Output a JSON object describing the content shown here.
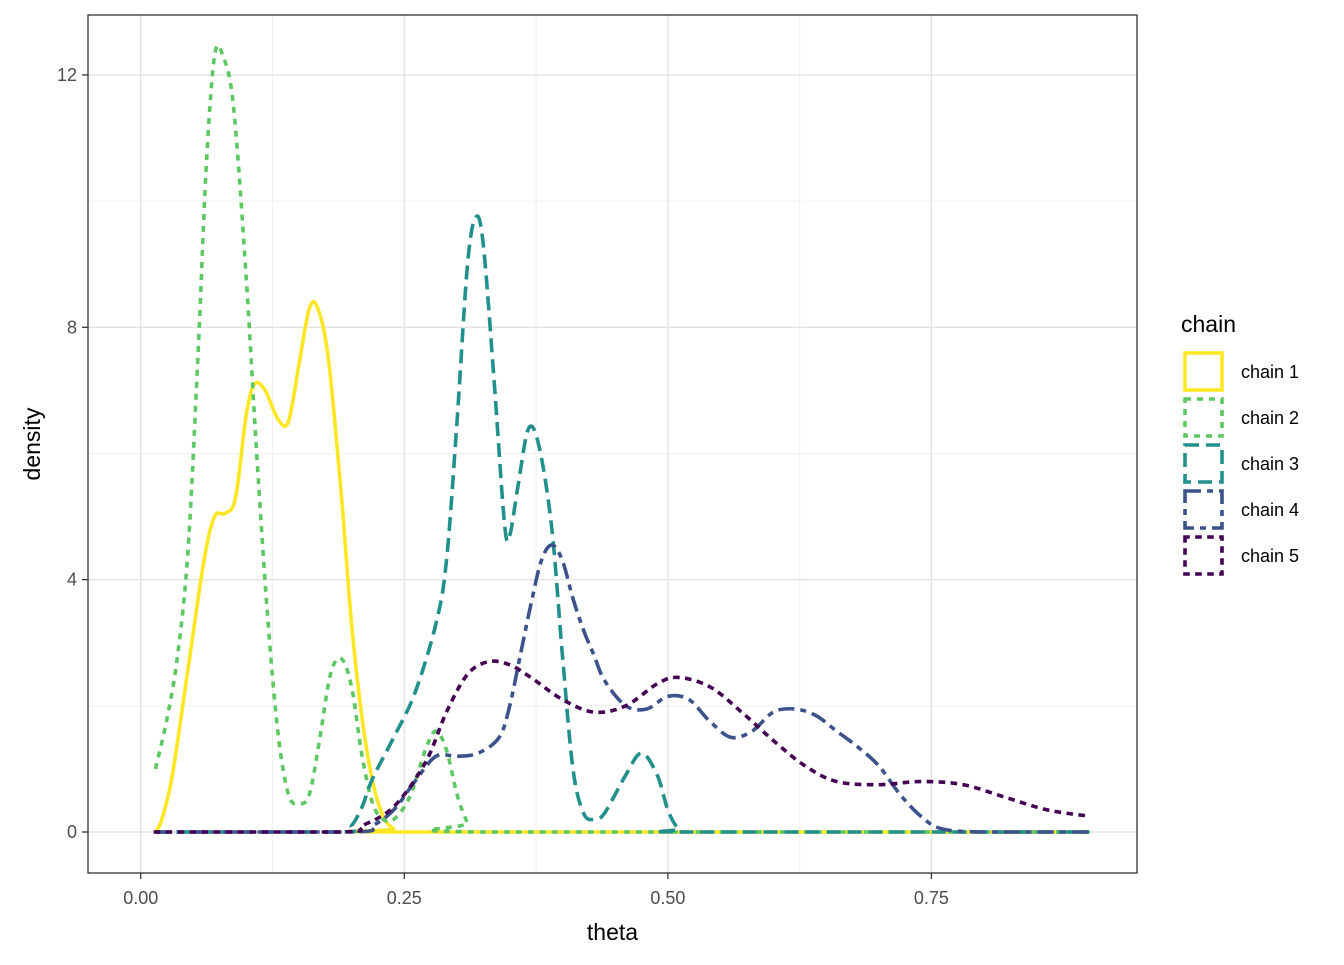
{
  "chart_data": {
    "type": "line",
    "title": "",
    "xlabel": "theta",
    "ylabel": "density",
    "xlim": [
      -0.05,
      0.945
    ],
    "ylim": [
      -0.65,
      12.95
    ],
    "x_ticks": [
      0.0,
      0.25,
      0.5,
      0.75
    ],
    "x_tick_labels": [
      "0.00",
      "0.25",
      "0.50",
      "0.75"
    ],
    "y_ticks": [
      0,
      4,
      8,
      12
    ],
    "y_tick_labels": [
      "0",
      "4",
      "8",
      "12"
    ],
    "grid": true,
    "legend": {
      "title": "chain",
      "placement": "right"
    },
    "series": [
      {
        "name": "chain 1",
        "color": "#FDE725",
        "linetype": "solid",
        "points": [
          [
            0.014,
            0
          ],
          [
            0.02,
            0.2
          ],
          [
            0.03,
            0.9
          ],
          [
            0.045,
            2.6
          ],
          [
            0.06,
            4.3
          ],
          [
            0.07,
            5.0
          ],
          [
            0.08,
            5.05
          ],
          [
            0.09,
            5.3
          ],
          [
            0.1,
            6.6
          ],
          [
            0.108,
            7.1
          ],
          [
            0.118,
            7.0
          ],
          [
            0.13,
            6.55
          ],
          [
            0.14,
            6.5
          ],
          [
            0.15,
            7.4
          ],
          [
            0.16,
            8.3
          ],
          [
            0.168,
            8.3
          ],
          [
            0.178,
            7.5
          ],
          [
            0.19,
            5.4
          ],
          [
            0.2,
            3.3
          ],
          [
            0.21,
            1.8
          ],
          [
            0.22,
            0.8
          ],
          [
            0.23,
            0.25
          ],
          [
            0.24,
            0.05
          ],
          [
            0.25,
            0
          ],
          [
            0.9,
            0
          ]
        ]
      },
      {
        "name": "chain 2",
        "color": "#5DC863",
        "linetype": "dashed",
        "points": [
          [
            0.014,
            1.0
          ],
          [
            0.025,
            1.8
          ],
          [
            0.035,
            2.8
          ],
          [
            0.045,
            4.5
          ],
          [
            0.055,
            7.8
          ],
          [
            0.062,
            10.5
          ],
          [
            0.07,
            12.3
          ],
          [
            0.078,
            12.3
          ],
          [
            0.088,
            11.5
          ],
          [
            0.1,
            8.8
          ],
          [
            0.11,
            6.0
          ],
          [
            0.12,
            3.5
          ],
          [
            0.13,
            1.6
          ],
          [
            0.14,
            0.6
          ],
          [
            0.15,
            0.45
          ],
          [
            0.16,
            0.6
          ],
          [
            0.17,
            1.5
          ],
          [
            0.18,
            2.5
          ],
          [
            0.19,
            2.75
          ],
          [
            0.2,
            2.3
          ],
          [
            0.21,
            1.2
          ],
          [
            0.22,
            0.45
          ],
          [
            0.23,
            0.2
          ],
          [
            0.24,
            0.2
          ],
          [
            0.255,
            0.55
          ],
          [
            0.27,
            1.3
          ],
          [
            0.28,
            1.6
          ],
          [
            0.29,
            1.3
          ],
          [
            0.3,
            0.6
          ],
          [
            0.31,
            0.15
          ],
          [
            0.32,
            0
          ],
          [
            0.9,
            0
          ]
        ]
      },
      {
        "name": "chain 3",
        "color": "#21908C",
        "linetype": "longdash",
        "points": [
          [
            0.014,
            0
          ],
          [
            0.19,
            0
          ],
          [
            0.2,
            0.1
          ],
          [
            0.21,
            0.4
          ],
          [
            0.22,
            0.85
          ],
          [
            0.24,
            1.5
          ],
          [
            0.26,
            2.2
          ],
          [
            0.28,
            3.3
          ],
          [
            0.29,
            4.3
          ],
          [
            0.3,
            6.5
          ],
          [
            0.31,
            9.0
          ],
          [
            0.318,
            9.75
          ],
          [
            0.325,
            9.3
          ],
          [
            0.335,
            7.2
          ],
          [
            0.345,
            4.9
          ],
          [
            0.35,
            4.7
          ],
          [
            0.358,
            5.5
          ],
          [
            0.368,
            6.4
          ],
          [
            0.378,
            6.1
          ],
          [
            0.39,
            4.8
          ],
          [
            0.4,
            2.8
          ],
          [
            0.41,
            1.0
          ],
          [
            0.42,
            0.3
          ],
          [
            0.43,
            0.2
          ],
          [
            0.44,
            0.3
          ],
          [
            0.46,
            0.9
          ],
          [
            0.475,
            1.25
          ],
          [
            0.49,
            0.9
          ],
          [
            0.5,
            0.35
          ],
          [
            0.51,
            0.05
          ],
          [
            0.52,
            0
          ],
          [
            0.9,
            0
          ]
        ]
      },
      {
        "name": "chain 4",
        "color": "#3B528B",
        "linetype": "twodash",
        "points": [
          [
            0.014,
            0
          ],
          [
            0.2,
            0
          ],
          [
            0.22,
            0.1
          ],
          [
            0.24,
            0.35
          ],
          [
            0.26,
            0.8
          ],
          [
            0.28,
            1.2
          ],
          [
            0.3,
            1.2
          ],
          [
            0.32,
            1.25
          ],
          [
            0.34,
            1.5
          ],
          [
            0.35,
            2.0
          ],
          [
            0.36,
            2.8
          ],
          [
            0.37,
            3.6
          ],
          [
            0.38,
            4.3
          ],
          [
            0.39,
            4.55
          ],
          [
            0.4,
            4.3
          ],
          [
            0.41,
            3.7
          ],
          [
            0.42,
            3.2
          ],
          [
            0.43,
            2.8
          ],
          [
            0.44,
            2.4
          ],
          [
            0.46,
            2.0
          ],
          [
            0.48,
            1.95
          ],
          [
            0.5,
            2.15
          ],
          [
            0.52,
            2.1
          ],
          [
            0.54,
            1.75
          ],
          [
            0.56,
            1.5
          ],
          [
            0.58,
            1.6
          ],
          [
            0.6,
            1.9
          ],
          [
            0.62,
            1.95
          ],
          [
            0.64,
            1.85
          ],
          [
            0.66,
            1.6
          ],
          [
            0.68,
            1.35
          ],
          [
            0.7,
            1.05
          ],
          [
            0.72,
            0.6
          ],
          [
            0.74,
            0.25
          ],
          [
            0.76,
            0.05
          ],
          [
            0.8,
            0
          ],
          [
            0.9,
            0
          ]
        ]
      },
      {
        "name": "chain 5",
        "color": "#440154",
        "linetype": "dotted",
        "points": [
          [
            0.014,
            0
          ],
          [
            0.19,
            0
          ],
          [
            0.21,
            0.1
          ],
          [
            0.24,
            0.4
          ],
          [
            0.27,
            1.1
          ],
          [
            0.29,
            1.9
          ],
          [
            0.31,
            2.5
          ],
          [
            0.33,
            2.7
          ],
          [
            0.35,
            2.65
          ],
          [
            0.37,
            2.45
          ],
          [
            0.4,
            2.1
          ],
          [
            0.43,
            1.9
          ],
          [
            0.46,
            2.0
          ],
          [
            0.49,
            2.35
          ],
          [
            0.51,
            2.45
          ],
          [
            0.54,
            2.3
          ],
          [
            0.57,
            1.9
          ],
          [
            0.6,
            1.45
          ],
          [
            0.63,
            1.05
          ],
          [
            0.66,
            0.8
          ],
          [
            0.7,
            0.75
          ],
          [
            0.74,
            0.8
          ],
          [
            0.78,
            0.75
          ],
          [
            0.82,
            0.55
          ],
          [
            0.86,
            0.35
          ],
          [
            0.9,
            0.25
          ]
        ]
      }
    ]
  }
}
